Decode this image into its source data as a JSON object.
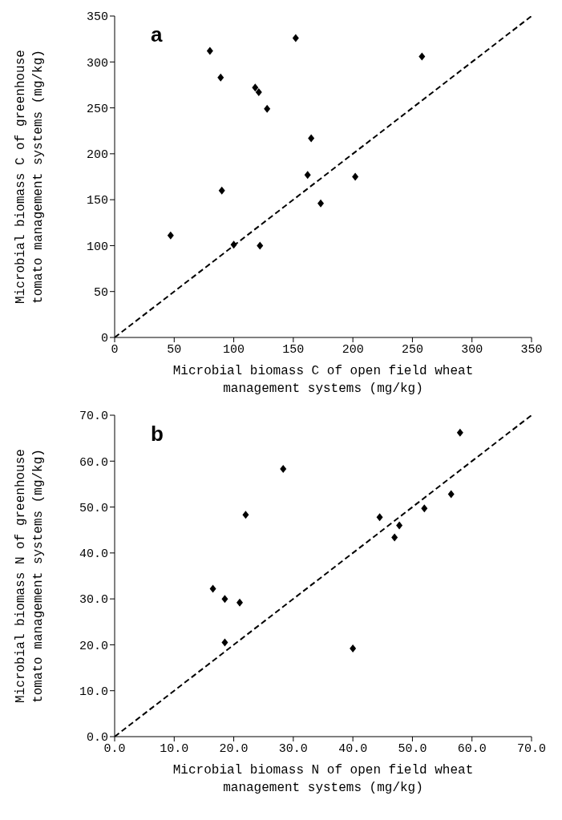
{
  "chart_data": [
    {
      "type": "scatter",
      "xlabel": "Microbial biomass C of open field wheat\nmanagement systems (mg/kg)",
      "ylabel": "Microbial biomass C of greenhouse\ntomato management systems (mg/kg)",
      "annotations": [
        "a"
      ],
      "xlim": [
        0,
        350
      ],
      "xticks": [
        0,
        50,
        100,
        150,
        200,
        250,
        300,
        350
      ],
      "ylim": [
        0,
        350
      ],
      "yticks": [
        0,
        50,
        100,
        150,
        200,
        250,
        300,
        350
      ],
      "series": [
        {
          "color": "#000000",
          "marker": "diamond",
          "x": [
            47,
            80,
            89,
            90,
            100,
            118,
            121,
            122,
            128,
            152,
            162,
            165,
            173,
            202,
            258
          ],
          "values": [
            111,
            312,
            283,
            160,
            101,
            272,
            267,
            100,
            249,
            326,
            177,
            217,
            146,
            175,
            306
          ]
        },
        {
          "type": "line",
          "color": "#000000",
          "marker": "none",
          "line_style": "dashed",
          "x": [
            0,
            350
          ],
          "values": [
            0,
            350
          ]
        }
      ]
    },
    {
      "type": "scatter",
      "xlabel": "Microbial biomass N of open field wheat\nmanagement systems  (mg/kg)",
      "ylabel": "Microbial biomass N of greenhouse\ntomato management systems (mg/kg)",
      "annotations": [
        "b"
      ],
      "xlim": [
        0,
        70
      ],
      "xticks": [
        {
          "value": 0,
          "label": "0.0"
        },
        {
          "value": 10,
          "label": "10.0"
        },
        {
          "value": 20,
          "label": "20.0"
        },
        {
          "value": 30,
          "label": "30.0"
        },
        {
          "value": 40,
          "label": "40.0"
        },
        {
          "value": 50,
          "label": "50.0"
        },
        {
          "value": 60,
          "label": "60.0"
        },
        {
          "value": 70,
          "label": "70.0"
        }
      ],
      "ylim": [
        0,
        70
      ],
      "yticks": [
        {
          "value": 0,
          "label": "0.0"
        },
        {
          "value": 10,
          "label": "10.0"
        },
        {
          "value": 20,
          "label": "20.0"
        },
        {
          "value": 30,
          "label": "30.0"
        },
        {
          "value": 40,
          "label": "40.0"
        },
        {
          "value": 50,
          "label": "50.0"
        },
        {
          "value": 60,
          "label": "60.0"
        },
        {
          "value": 70,
          "label": "70.0"
        }
      ],
      "series": [
        {
          "color": "#000000",
          "marker": "diamond",
          "x": [
            16.5,
            18.5,
            18.5,
            21,
            22,
            28.3,
            40,
            44.5,
            47,
            47.8,
            52,
            56.5,
            58
          ],
          "values": [
            32.2,
            30,
            20.5,
            29.2,
            48.3,
            58.3,
            19.2,
            47.8,
            43.4,
            46,
            49.7,
            52.8,
            66.2
          ]
        },
        {
          "type": "line",
          "color": "#000000",
          "marker": "none",
          "line_style": "dashed",
          "x": [
            0,
            70
          ],
          "values": [
            0,
            70
          ]
        }
      ]
    }
  ]
}
